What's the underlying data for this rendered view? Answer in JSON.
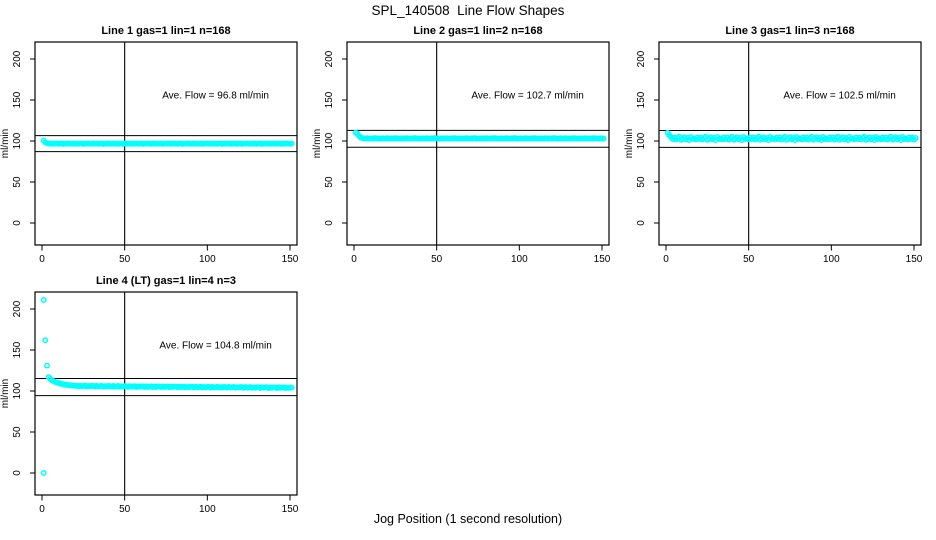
{
  "chart_data": {
    "type": "scatter",
    "title": "SPL_140508  Line Flow Shapes",
    "xlabel": "Jog Position (1 second resolution)",
    "ylabel": "ml/min",
    "xlim": [
      -4,
      154
    ],
    "ylim": [
      -27,
      221
    ],
    "xticks": [
      0,
      50,
      100,
      150
    ],
    "yticks": [
      0,
      50,
      100,
      150,
      200
    ],
    "grid": false,
    "point_color": "#00ffff",
    "axis_color": "#000000",
    "vline_x": 50,
    "panels": [
      {
        "title": "Line 1 gas=1 lin=1 n=168",
        "ave_flow": 96.8,
        "ave_label": "Ave. Flow =  96.8  ml/min",
        "ref_lines": [
          106.5,
          87.1
        ],
        "extra_points": [],
        "series": {
          "x_start": 1,
          "x_step": 1,
          "y": [
            100.6,
            98.3,
            97.4,
            97.0,
            96.8,
            96.6,
            96.9,
            96.7,
            97.0,
            96.6,
            96.8,
            96.9,
            96.5,
            96.8,
            96.7,
            96.9,
            96.8,
            96.6,
            96.9,
            96.7,
            97.0,
            96.6,
            96.8,
            96.9,
            96.5,
            96.8,
            96.7,
            96.9,
            96.8,
            96.6,
            96.9,
            96.7,
            97.0,
            96.6,
            96.8,
            96.9,
            96.5,
            96.8,
            96.7,
            96.9,
            96.8,
            96.6,
            96.9,
            96.7,
            97.0,
            96.6,
            96.8,
            96.9,
            96.5,
            96.8,
            96.7,
            96.9,
            96.8,
            96.6,
            96.9,
            96.7,
            97.0,
            96.6,
            96.8,
            96.9,
            96.5,
            96.8,
            96.7,
            96.9,
            96.8,
            96.6,
            96.9,
            96.7,
            97.0,
            96.6,
            96.8,
            96.9,
            96.5,
            96.8,
            96.7,
            96.9,
            96.8,
            96.6,
            96.9,
            96.7,
            97.0,
            96.6,
            96.8,
            96.9,
            96.5,
            96.8,
            96.7,
            96.9,
            96.8,
            96.6,
            96.9,
            96.7,
            97.0,
            96.6,
            96.8,
            96.9,
            96.5,
            96.8,
            96.7,
            96.9,
            96.8,
            96.6,
            96.9,
            96.7,
            97.0,
            96.6,
            96.8,
            96.9,
            96.5,
            96.8,
            96.7,
            96.9,
            96.8,
            96.6,
            96.9,
            96.7,
            97.0,
            96.6,
            96.8,
            96.9,
            96.5,
            96.8,
            96.7,
            96.9,
            96.8,
            96.6,
            96.9,
            96.7,
            97.0,
            96.6,
            96.8,
            96.9,
            96.5,
            96.8,
            96.7,
            96.9,
            96.8,
            96.6,
            96.9,
            96.7,
            97.0,
            96.6,
            96.8,
            96.9,
            96.5,
            96.8,
            96.7,
            96.9,
            96.8,
            96.6,
            96.9
          ]
        }
      },
      {
        "title": "Line 2 gas=1 lin=2 n=168",
        "ave_flow": 102.7,
        "ave_label": "Ave. Flow =  102.7  ml/min",
        "ref_lines": [
          113.0,
          92.4
        ],
        "extra_points": [],
        "series": {
          "x_start": 1,
          "x_step": 1,
          "y": [
            110.2,
            108.9,
            106.3,
            104.4,
            103.6,
            103.2,
            103.0,
            103.4,
            103.1,
            102.9,
            103.3,
            103.1,
            103.5,
            103.0,
            103.2,
            102.8,
            103.3,
            103.2,
            103.0,
            103.4,
            103.1,
            102.9,
            103.3,
            103.1,
            103.5,
            103.0,
            103.2,
            102.8,
            103.3,
            103.2,
            103.0,
            103.4,
            103.1,
            102.9,
            103.3,
            103.1,
            103.5,
            103.0,
            103.2,
            102.8,
            103.3,
            103.2,
            103.0,
            103.4,
            103.1,
            102.9,
            103.3,
            103.1,
            103.5,
            103.0,
            103.2,
            102.8,
            103.3,
            103.2,
            103.0,
            103.4,
            103.1,
            102.9,
            103.3,
            103.1,
            103.5,
            103.0,
            103.2,
            102.8,
            103.3,
            103.2,
            103.0,
            103.4,
            103.1,
            102.9,
            103.3,
            103.1,
            103.5,
            103.0,
            103.2,
            102.8,
            103.3,
            103.2,
            103.0,
            103.4,
            103.1,
            102.9,
            103.3,
            103.1,
            103.5,
            103.0,
            103.2,
            102.8,
            103.3,
            103.2,
            103.0,
            103.4,
            103.1,
            102.9,
            103.3,
            103.1,
            103.5,
            103.0,
            103.2,
            102.8,
            103.3,
            103.2,
            103.0,
            103.4,
            103.1,
            102.9,
            103.3,
            103.1,
            103.5,
            103.0,
            103.2,
            102.8,
            103.3,
            103.2,
            103.0,
            103.4,
            103.1,
            102.9,
            103.3,
            103.1,
            103.5,
            103.0,
            103.2,
            102.8,
            103.3,
            103.2,
            103.0,
            103.4,
            103.1,
            102.9,
            103.3,
            103.1,
            103.5,
            103.0,
            103.2,
            102.8,
            103.3,
            103.2,
            103.0,
            103.4,
            103.1,
            102.9,
            103.3,
            103.1,
            103.5,
            103.0,
            103.2,
            102.8,
            103.3,
            103.2,
            103.0
          ]
        }
      },
      {
        "title": "Line 3 gas=1 lin=3 n=168",
        "ave_flow": 102.5,
        "ave_label": "Ave. Flow =  102.5  ml/min",
        "ref_lines": [
          112.8,
          92.3
        ],
        "extra_points": [],
        "series": {
          "x_start": 1,
          "x_step": 1,
          "y": [
            110.0,
            107.2,
            104.8,
            102.4,
            104.1,
            101.8,
            103.6,
            105.2,
            101.5,
            102.9,
            104.6,
            102.0,
            103.8,
            101.2,
            105.0,
            102.6,
            103.3,
            101.9,
            104.4,
            102.4,
            104.1,
            101.8,
            103.6,
            105.2,
            101.5,
            102.9,
            104.6,
            102.0,
            103.8,
            101.2,
            105.0,
            102.6,
            103.3,
            101.9,
            104.4,
            102.4,
            104.1,
            101.8,
            103.6,
            105.2,
            101.5,
            102.9,
            104.6,
            102.0,
            103.8,
            101.2,
            105.0,
            102.6,
            103.3,
            101.9,
            104.4,
            102.4,
            104.1,
            101.8,
            103.6,
            105.2,
            101.5,
            102.9,
            104.6,
            102.0,
            103.8,
            101.2,
            105.0,
            102.6,
            103.3,
            101.9,
            104.4,
            102.4,
            104.1,
            101.8,
            103.6,
            105.2,
            101.5,
            102.9,
            104.6,
            102.0,
            103.8,
            101.2,
            105.0,
            102.6,
            103.3,
            101.9,
            104.4,
            102.4,
            104.1,
            101.8,
            103.6,
            105.2,
            101.5,
            102.9,
            104.6,
            102.0,
            103.8,
            101.2,
            105.0,
            102.6,
            103.3,
            101.9,
            104.4,
            102.4,
            104.1,
            101.8,
            103.6,
            105.2,
            101.5,
            102.9,
            104.6,
            102.0,
            103.8,
            101.2,
            105.0,
            102.6,
            103.3,
            101.9,
            104.4,
            102.4,
            104.1,
            101.8,
            103.6,
            105.2,
            101.5,
            102.9,
            104.6,
            102.0,
            103.8,
            101.2,
            105.0,
            102.6,
            103.3,
            101.9,
            104.4,
            102.4,
            104.1,
            101.8,
            103.6,
            105.2,
            101.5,
            102.9,
            104.6,
            102.0,
            103.8,
            101.2,
            105.0,
            102.6,
            103.3,
            101.9,
            104.4,
            102.4,
            104.1,
            101.8,
            103.6
          ]
        }
      },
      {
        "title": "Line 4 (LT) gas=1 lin=4 n=3",
        "ave_flow": 104.8,
        "ave_label": "Ave. Flow =  104.8  ml/min",
        "ref_lines": [
          115.3,
          94.3
        ],
        "extra_points": [
          [
            1,
            0
          ],
          [
            1,
            211
          ],
          [
            2,
            162
          ],
          [
            3,
            131
          ]
        ],
        "series": {
          "x_start": 4,
          "x_step": 1,
          "y": [
            117.0,
            114.8,
            113.2,
            112.0,
            111.1,
            110.3,
            109.7,
            109.1,
            108.6,
            108.2,
            107.8,
            107.5,
            107.2,
            106.9,
            106.7,
            106.5,
            106.3,
            106.4,
            105.7,
            106.5,
            105.9,
            106.0,
            106.6,
            105.5,
            106.2,
            105.7,
            106.3,
            106.1,
            105.4,
            106.3,
            105.6,
            105.8,
            106.3,
            105.3,
            105.9,
            105.5,
            106.1,
            105.9,
            105.2,
            106.1,
            105.4,
            105.6,
            106.1,
            105.1,
            105.7,
            105.3,
            105.9,
            105.7,
            105.0,
            105.9,
            105.2,
            105.4,
            105.9,
            104.9,
            105.5,
            105.1,
            105.7,
            105.5,
            104.8,
            105.7,
            105.0,
            105.2,
            105.7,
            104.7,
            105.3,
            104.9,
            105.5,
            105.4,
            104.7,
            105.5,
            104.9,
            105.1,
            105.5,
            104.6,
            105.2,
            104.8,
            105.3,
            105.2,
            104.5,
            105.4,
            104.7,
            104.9,
            105.4,
            104.4,
            105.0,
            104.6,
            105.2,
            105.1,
            104.4,
            105.2,
            104.6,
            104.8,
            105.2,
            104.3,
            104.9,
            104.5,
            105.0,
            104.9,
            104.2,
            105.1,
            104.4,
            104.6,
            105.1,
            104.1,
            104.7,
            104.3,
            104.9,
            104.8,
            104.1,
            104.9,
            104.3,
            104.5,
            104.9,
            104.0,
            104.6,
            104.2,
            104.7,
            104.6,
            103.9,
            104.8,
            104.1,
            104.3,
            104.8,
            103.9,
            104.4,
            104.0,
            104.6,
            104.5,
            103.8,
            104.6,
            104.0,
            104.2,
            104.6,
            103.7,
            104.3,
            103.9,
            104.4,
            104.4,
            103.7,
            104.5,
            103.9,
            104.1,
            104.5,
            103.6,
            104.2,
            103.8,
            104.3,
            104.0
          ]
        }
      }
    ]
  }
}
